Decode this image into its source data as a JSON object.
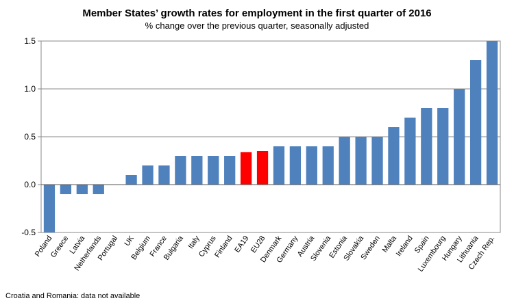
{
  "chart_data": {
    "type": "bar",
    "title": "Member States’ growth rates for employment in the first quarter of 2016",
    "subtitle": "% change over the previous quarter, seasonally adjusted",
    "categories": [
      "Poland",
      "Greece",
      "Latvia",
      "Netherlands",
      "Portugal",
      "UK",
      "Belgium",
      "France",
      "Bulgaria",
      "Italy",
      "Cyprus",
      "Finland",
      "EA19",
      "EU28",
      "Denmark",
      "Germany",
      "Austria",
      "Slovenia",
      "Estonia",
      "Slovakia",
      "Sweden",
      "Malta",
      "Ireland",
      "Spain",
      "Luxembourg",
      "Hungary",
      "Lithuania",
      "Czech Rep."
    ],
    "values": [
      -0.5,
      -0.1,
      -0.1,
      -0.1,
      0.0,
      0.1,
      0.2,
      0.2,
      0.3,
      0.3,
      0.3,
      0.3,
      0.34,
      0.35,
      0.4,
      0.4,
      0.4,
      0.4,
      0.5,
      0.5,
      0.5,
      0.6,
      0.7,
      0.8,
      0.8,
      1.0,
      1.3,
      1.5
    ],
    "highlight": [
      "EA19",
      "EU28"
    ],
    "ylim": [
      -0.5,
      1.5
    ],
    "yticks": [
      "1.5",
      "1.0",
      "0.5",
      "0.0",
      "-0.5"
    ],
    "ytick_values": [
      1.5,
      1.0,
      0.5,
      0.0,
      -0.5
    ],
    "bar_color": "#4f81bd",
    "highlight_color": "#ff0000",
    "footnote": "Croatia and Romania: data not available"
  }
}
